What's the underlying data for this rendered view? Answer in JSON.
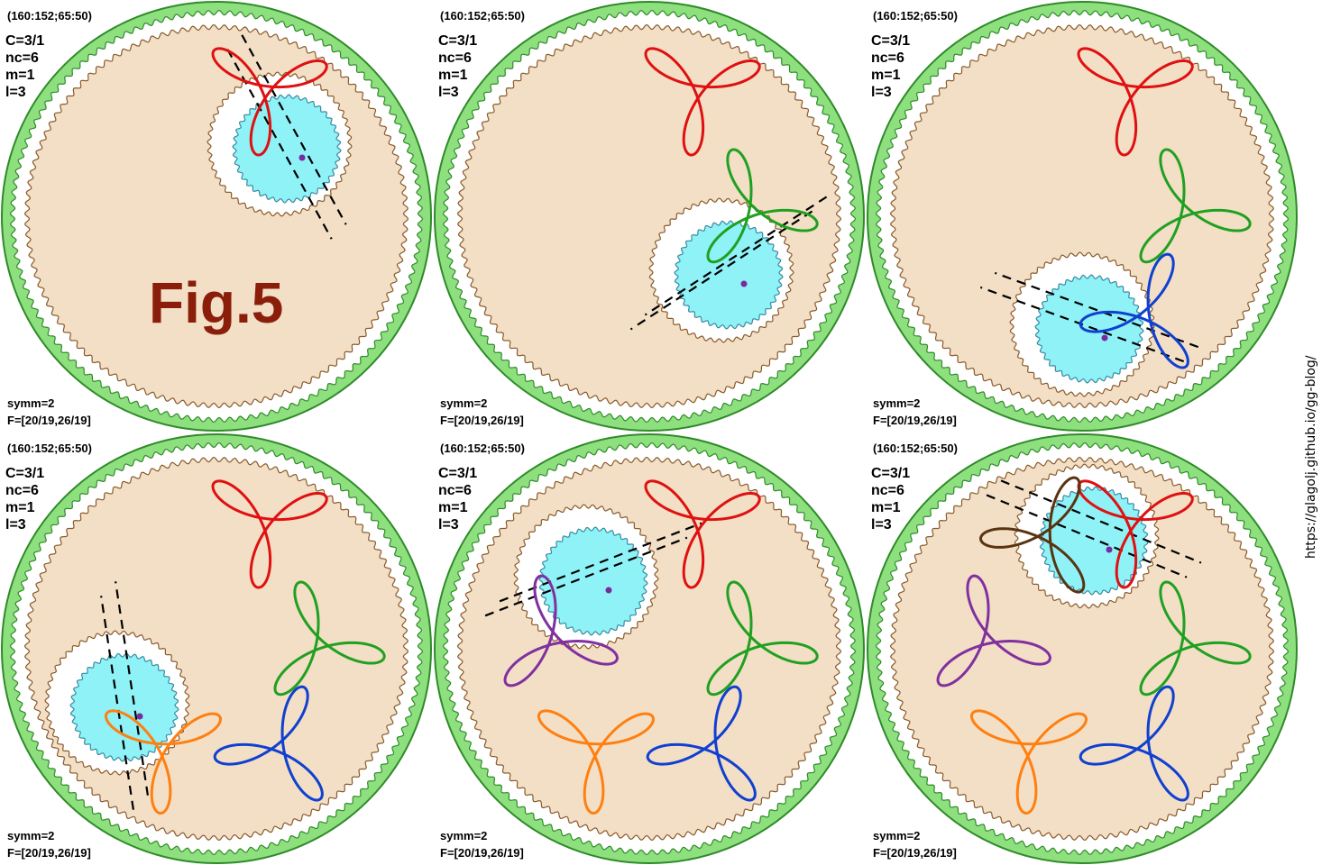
{
  "figure_label": "Fig.5",
  "url_text": "https://glagolj.github.io/gg-blog/",
  "colors": {
    "outer_ring": "#8ee07e",
    "outer_ring_edge": "#2f8a2a",
    "moving_gear_fill": "#f2dfc6",
    "moving_gear_edge": "#8a5a2a",
    "small_gear_fill": "#8ef2f7",
    "small_gear_edge": "#3a8aa0",
    "figure_label": "#8b1e0a",
    "curve_colors": [
      "#e01010",
      "#20a020",
      "#1040d0",
      "#ff7f10",
      "#8030a0",
      "#5a3410"
    ]
  },
  "panels": [
    {
      "header": "(160:152;65:50)",
      "params": [
        "C=3/1",
        "nc=6",
        "m=1",
        "l=3"
      ],
      "footer": [
        "symm=2",
        "F=[20/19,26/19]"
      ],
      "curves_drawn": 1,
      "show_figure_label": true
    },
    {
      "header": "(160:152;65:50)",
      "params": [
        "C=3/1",
        "nc=6",
        "m=1",
        "l=3"
      ],
      "footer": [
        "symm=2",
        "F=[20/19,26/19]"
      ],
      "curves_drawn": 2,
      "show_figure_label": false
    },
    {
      "header": "(160:152;65:50)",
      "params": [
        "C=3/1",
        "nc=6",
        "m=1",
        "l=3"
      ],
      "footer": [
        "symm=2",
        "F=[20/19,26/19]"
      ],
      "curves_drawn": 3,
      "show_figure_label": false
    },
    {
      "header": "(160:152;65:50)",
      "params": [
        "C=3/1",
        "nc=6",
        "m=1",
        "l=3"
      ],
      "footer": [
        "symm=2",
        "F=[20/19,26/19]"
      ],
      "curves_drawn": 4,
      "show_figure_label": false
    },
    {
      "header": "(160:152;65:50)",
      "params": [
        "C=3/1",
        "nc=6",
        "m=1",
        "l=3"
      ],
      "footer": [
        "symm=2",
        "F=[20/19,26/19]"
      ],
      "curves_drawn": 5,
      "show_figure_label": false
    },
    {
      "header": "(160:152;65:50)",
      "params": [
        "C=3/1",
        "nc=6",
        "m=1",
        "l=3"
      ],
      "footer": [
        "symm=2",
        "F=[20/19,26/19]"
      ],
      "curves_drawn": 6,
      "show_figure_label": false
    }
  ]
}
